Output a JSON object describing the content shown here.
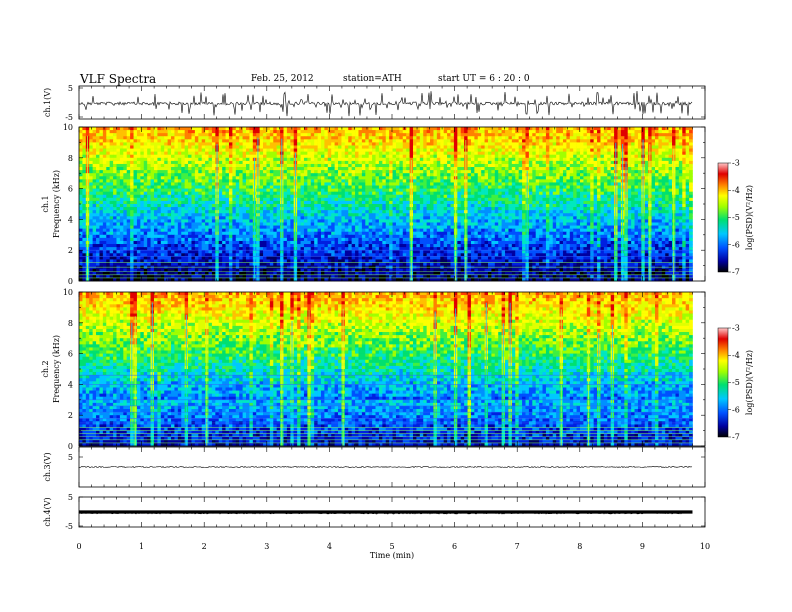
{
  "header": {
    "title": "VLF  Spectra",
    "date": "Feb. 25, 2012",
    "station": "station=ATH",
    "start": "start  UT  =   6  : 20 : 0"
  },
  "chart_data": [
    {
      "type": "line",
      "name": "ch1-waveform",
      "ylabel": "ch.1(V)",
      "yticks": [
        "5",
        "-5"
      ],
      "ylim": [
        -5,
        5
      ],
      "xlim": [
        0,
        10
      ]
    },
    {
      "type": "heatmap",
      "name": "ch1-spectrogram",
      "ylabel_channel": "ch.1",
      "ylabel": "Frequency  (kHz)",
      "yticks": [
        "0",
        "2",
        "4",
        "6",
        "8",
        "10"
      ],
      "ylim": [
        0,
        10
      ],
      "xlim": [
        0,
        9.8
      ],
      "colorbar": {
        "label": "log(PSD)(V²/Hz)",
        "ticks": [
          "-3",
          "-4",
          "-5",
          "-6",
          "-7"
        ],
        "range": [
          -7,
          -3
        ],
        "colors": [
          "#000000",
          "#0000a0",
          "#0050ff",
          "#00c8ff",
          "#00e070",
          "#a0ff00",
          "#ffff00",
          "#ff8000",
          "#e00000",
          "#ffc8c8"
        ]
      }
    },
    {
      "type": "heatmap",
      "name": "ch2-spectrogram",
      "ylabel_channel": "ch.2",
      "ylabel": "Frequency  (kHz)",
      "yticks": [
        "0",
        "2",
        "4",
        "6",
        "8",
        "10"
      ],
      "ylim": [
        0,
        10
      ],
      "xlim": [
        0,
        9.8
      ],
      "colorbar": {
        "label": "log(PSD)(V²/Hz)",
        "ticks": [
          "-3",
          "-4",
          "-5",
          "-6",
          "-7"
        ],
        "range": [
          -7,
          -3
        ]
      }
    },
    {
      "type": "line",
      "name": "ch3-waveform",
      "ylabel": "ch.3(V)",
      "yticks": [
        "5"
      ],
      "ylim": [
        -5,
        5
      ],
      "xlim": [
        0,
        10
      ]
    },
    {
      "type": "line",
      "name": "ch4-waveform",
      "ylabel": "ch.4(V)",
      "yticks": [
        "5",
        "-5"
      ],
      "ylim": [
        -5,
        5
      ],
      "xlim": [
        0,
        10
      ]
    }
  ],
  "xaxis": {
    "label": "Time  (min)",
    "ticks": [
      "0",
      "1",
      "2",
      "3",
      "4",
      "5",
      "6",
      "7",
      "8",
      "9",
      "10"
    ],
    "range": [
      0,
      10
    ]
  }
}
